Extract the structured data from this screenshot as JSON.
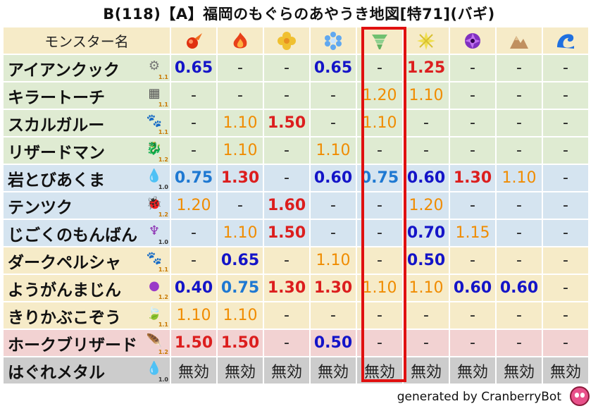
{
  "title": "B(118)【A】福岡のもぐらのあやうき地図[特71](バギ)",
  "header_label": "モンスター名",
  "attributes": [
    "fire-ball-icon",
    "flame-icon",
    "clover-icon",
    "ice-crystal-icon",
    "wind-tornado-icon",
    "light-burst-icon",
    "dark-swirl-icon",
    "mountain-icon",
    "wave-icon"
  ],
  "colors": {
    "beige": "#f6ebc8",
    "green": "#dfebd2",
    "blue": "#d5e4f0",
    "pink": "#f2d2d2",
    "gray": "#cccccc",
    "highlight": "#e01010"
  },
  "rows": [
    {
      "name": "アイアンクック",
      "icon": "gear-icon",
      "level": "1.1",
      "bg": "green",
      "values": [
        [
          "0.65",
          "blue"
        ],
        [
          "-",
          "dash"
        ],
        [
          "-",
          "dash"
        ],
        [
          "0.65",
          "blue"
        ],
        [
          "-",
          "dash"
        ],
        [
          "1.25",
          "red"
        ],
        [
          "-",
          "dash"
        ],
        [
          "-",
          "dash"
        ],
        [
          "-",
          "dash"
        ]
      ]
    },
    {
      "name": "キラートーチ",
      "icon": "brick-icon",
      "level": "1.1",
      "bg": "green",
      "values": [
        [
          "-",
          "dash"
        ],
        [
          "-",
          "dash"
        ],
        [
          "-",
          "dash"
        ],
        [
          "-",
          "dash"
        ],
        [
          "1.20",
          "orange"
        ],
        [
          "1.10",
          "orange"
        ],
        [
          "-",
          "dash"
        ],
        [
          "-",
          "dash"
        ],
        [
          "-",
          "dash"
        ]
      ]
    },
    {
      "name": "スカルガルー",
      "icon": "paw-icon",
      "level": "1.1",
      "bg": "green",
      "values": [
        [
          "-",
          "dash"
        ],
        [
          "1.10",
          "orange"
        ],
        [
          "1.50",
          "red"
        ],
        [
          "-",
          "dash"
        ],
        [
          "1.10",
          "orange"
        ],
        [
          "-",
          "dash"
        ],
        [
          "-",
          "dash"
        ],
        [
          "-",
          "dash"
        ],
        [
          "-",
          "dash"
        ]
      ]
    },
    {
      "name": "リザードマン",
      "icon": "dragon-icon",
      "level": "1.2",
      "bg": "green",
      "values": [
        [
          "-",
          "dash"
        ],
        [
          "1.10",
          "orange"
        ],
        [
          "-",
          "dash"
        ],
        [
          "1.10",
          "orange"
        ],
        [
          "-",
          "dash"
        ],
        [
          "-",
          "dash"
        ],
        [
          "-",
          "dash"
        ],
        [
          "-",
          "dash"
        ],
        [
          "-",
          "dash"
        ]
      ]
    },
    {
      "name": "岩とびあくま",
      "icon": "water-drop-icon",
      "level": "1.0",
      "bg": "blue",
      "values": [
        [
          "0.75",
          "lblue"
        ],
        [
          "1.30",
          "red"
        ],
        [
          "-",
          "dash"
        ],
        [
          "0.60",
          "blue"
        ],
        [
          "0.75",
          "lblue"
        ],
        [
          "0.60",
          "blue"
        ],
        [
          "1.30",
          "red"
        ],
        [
          "1.10",
          "orange"
        ],
        [
          "-",
          "dash"
        ]
      ]
    },
    {
      "name": "テンツク",
      "icon": "bug-icon",
      "level": "1.2",
      "bg": "blue",
      "values": [
        [
          "1.20",
          "orange"
        ],
        [
          "-",
          "dash"
        ],
        [
          "1.60",
          "red"
        ],
        [
          "-",
          "dash"
        ],
        [
          "-",
          "dash"
        ],
        [
          "1.20",
          "orange"
        ],
        [
          "-",
          "dash"
        ],
        [
          "-",
          "dash"
        ],
        [
          "-",
          "dash"
        ]
      ]
    },
    {
      "name": "じごくのもんばん",
      "icon": "demon-icon",
      "level": "1.0",
      "bg": "blue",
      "values": [
        [
          "-",
          "dash"
        ],
        [
          "1.10",
          "orange"
        ],
        [
          "1.50",
          "red"
        ],
        [
          "-",
          "dash"
        ],
        [
          "-",
          "dash"
        ],
        [
          "0.70",
          "blue"
        ],
        [
          "1.15",
          "orange"
        ],
        [
          "-",
          "dash"
        ],
        [
          "-",
          "dash"
        ]
      ]
    },
    {
      "name": "ダークペルシャ",
      "icon": "paw-icon",
      "level": "1.1",
      "bg": "beige",
      "values": [
        [
          "-",
          "dash"
        ],
        [
          "0.65",
          "blue"
        ],
        [
          "-",
          "dash"
        ],
        [
          "1.10",
          "orange"
        ],
        [
          "-",
          "dash"
        ],
        [
          "0.50",
          "blue"
        ],
        [
          "-",
          "dash"
        ],
        [
          "-",
          "dash"
        ],
        [
          "-",
          "dash"
        ]
      ]
    },
    {
      "name": "ようがんまじん",
      "icon": "blob-icon",
      "level": "1.2",
      "bg": "beige",
      "values": [
        [
          "0.40",
          "blue"
        ],
        [
          "0.75",
          "lblue"
        ],
        [
          "1.30",
          "red"
        ],
        [
          "1.30",
          "red"
        ],
        [
          "1.10",
          "orange"
        ],
        [
          "1.10",
          "orange"
        ],
        [
          "0.60",
          "blue"
        ],
        [
          "0.60",
          "blue"
        ],
        [
          "-",
          "dash"
        ]
      ]
    },
    {
      "name": "きりかぶこぞう",
      "icon": "leaf-icon",
      "level": "1.1",
      "bg": "beige",
      "values": [
        [
          "1.10",
          "orange"
        ],
        [
          "1.10",
          "orange"
        ],
        [
          "-",
          "dash"
        ],
        [
          "-",
          "dash"
        ],
        [
          "-",
          "dash"
        ],
        [
          "-",
          "dash"
        ],
        [
          "-",
          "dash"
        ],
        [
          "-",
          "dash"
        ],
        [
          "-",
          "dash"
        ]
      ]
    },
    {
      "name": "ホークブリザード",
      "icon": "wing-icon",
      "level": "1.2",
      "bg": "pink",
      "values": [
        [
          "1.50",
          "red"
        ],
        [
          "1.50",
          "red"
        ],
        [
          "-",
          "dash"
        ],
        [
          "0.50",
          "blue"
        ],
        [
          "-",
          "dash"
        ],
        [
          "-",
          "dash"
        ],
        [
          "-",
          "dash"
        ],
        [
          "-",
          "dash"
        ],
        [
          "-",
          "dash"
        ]
      ]
    },
    {
      "name": "はぐれメタル",
      "icon": "slime-icon",
      "level": "1.0",
      "bg": "gray",
      "values": [
        [
          "無効",
          "dash"
        ],
        [
          "無効",
          "dash"
        ],
        [
          "無効",
          "dash"
        ],
        [
          "無効",
          "dash"
        ],
        [
          "無効",
          "dash"
        ],
        [
          "無効",
          "dash"
        ],
        [
          "無効",
          "dash"
        ],
        [
          "無効",
          "dash"
        ],
        [
          "無効",
          "dash"
        ]
      ]
    }
  ],
  "footer": "generated by CranberryBot"
}
